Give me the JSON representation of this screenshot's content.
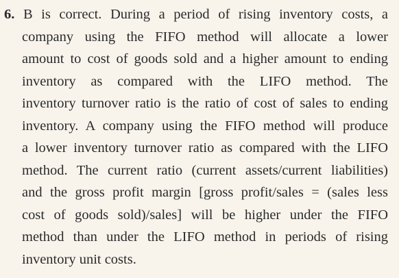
{
  "answer": {
    "number": "6.",
    "lines": [
      "B is correct. During a period of rising inventory costs, a",
      "company using the FIFO method will allocate a lower",
      "amount to cost of goods sold and a higher amount to ending",
      "inventory as compared with the LIFO method. The",
      "inventory turnover ratio is the ratio of cost of sales to ending",
      "inventory. A company using the FIFO method will produce",
      "a lower inventory turnover ratio as compared with the LIFO",
      "method. The current ratio (current assets/current liabilities)",
      "and the gross profit margin [gross profit/sales = (sales less",
      "cost of goods sold)/sales] will be higher under the FIFO",
      "method than under the LIFO method in periods of rising",
      "inventory unit costs."
    ]
  }
}
